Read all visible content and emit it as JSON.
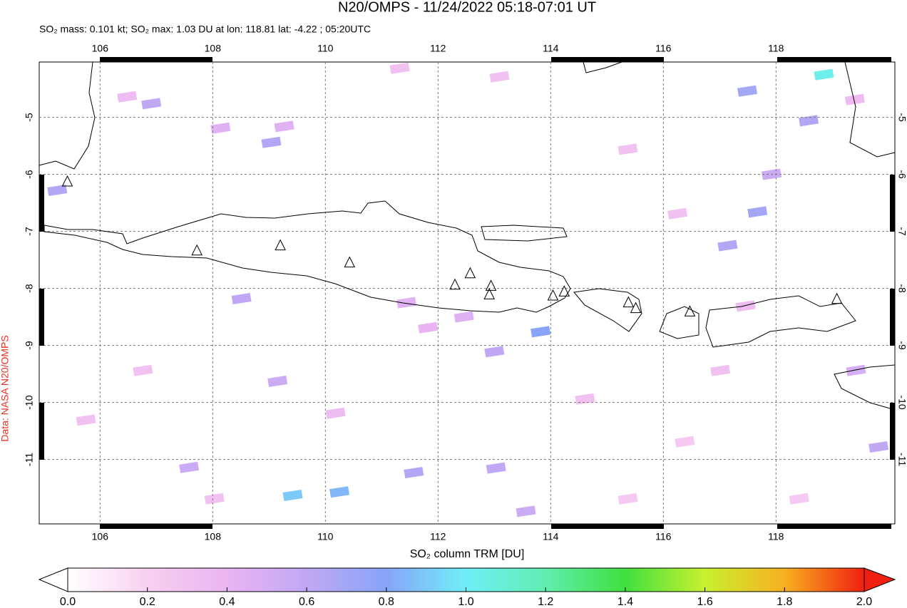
{
  "title": "N20/OMPS - 11/24/2022 05:18-07:01 UT",
  "subtitle": "SO₂ mass: 0.101 kt; SO₂ max: 1.03 DU at lon: 118.81 lat: -4.22 ; 05:20UTC",
  "credit": "Data: NASA N20/OMPS",
  "map": {
    "type": "map",
    "xlim": [
      104.92,
      120.11
    ],
    "ylim": [
      -12.13,
      -4.03
    ],
    "xticks": [
      106,
      108,
      110,
      112,
      114,
      116,
      118
    ],
    "yticks": [
      -5,
      -6,
      -7,
      -8,
      -9,
      -10,
      -11
    ],
    "grid": true,
    "volcanoes": [
      [
        105.42,
        -6.13
      ],
      [
        107.72,
        -7.34
      ],
      [
        109.2,
        -7.25
      ],
      [
        110.43,
        -7.55
      ],
      [
        112.3,
        -7.94
      ],
      [
        112.57,
        -7.74
      ],
      [
        112.94,
        -7.96
      ],
      [
        112.91,
        -8.11
      ],
      [
        114.04,
        -8.13
      ],
      [
        114.24,
        -8.06
      ],
      [
        115.38,
        -8.25
      ],
      [
        115.51,
        -8.35
      ],
      [
        116.47,
        -8.41
      ],
      [
        119.08,
        -8.19
      ]
    ],
    "cells": [
      [
        118.85,
        -4.25,
        1.03
      ],
      [
        109.42,
        -11.63,
        0.9
      ],
      [
        110.25,
        -11.57,
        0.85
      ],
      [
        113.82,
        -8.76,
        0.8
      ],
      [
        109.04,
        -5.44,
        0.65
      ],
      [
        106.91,
        -4.76,
        0.6
      ],
      [
        105.24,
        -6.28,
        0.65
      ],
      [
        108.51,
        -8.18,
        0.6
      ],
      [
        113.0,
        -9.11,
        0.6
      ],
      [
        111.57,
        -11.23,
        0.65
      ],
      [
        113.03,
        -11.15,
        0.6
      ],
      [
        113.56,
        -11.91,
        0.55
      ],
      [
        107.58,
        -11.14,
        0.55
      ],
      [
        109.15,
        -9.63,
        0.55
      ],
      [
        117.14,
        -7.25,
        0.65
      ],
      [
        117.67,
        -6.66,
        0.7
      ],
      [
        118.58,
        -5.06,
        0.65
      ],
      [
        117.49,
        -4.54,
        0.7
      ],
      [
        119.82,
        -10.78,
        0.6
      ],
      [
        119.42,
        -9.44,
        0.5
      ],
      [
        117.92,
        -6.0,
        0.55
      ],
      [
        111.44,
        -8.25,
        0.45
      ],
      [
        112.46,
        -8.5,
        0.45
      ],
      [
        108.14,
        -5.19,
        0.45
      ],
      [
        109.27,
        -5.16,
        0.45
      ],
      [
        106.48,
        -4.64,
        0.35
      ],
      [
        119.4,
        -4.69,
        0.35
      ],
      [
        111.32,
        -4.14,
        0.3
      ],
      [
        113.09,
        -4.29,
        0.3
      ],
      [
        115.37,
        -5.56,
        0.3
      ],
      [
        116.25,
        -6.69,
        0.3
      ],
      [
        114.61,
        -9.94,
        0.3
      ],
      [
        117.01,
        -9.44,
        0.3
      ],
      [
        106.76,
        -9.44,
        0.3
      ],
      [
        105.75,
        -10.31,
        0.3
      ],
      [
        110.18,
        -10.19,
        0.35
      ],
      [
        111.82,
        -8.69,
        0.4
      ],
      [
        116.38,
        -10.69,
        0.25
      ],
      [
        118.41,
        -11.69,
        0.25
      ],
      [
        115.37,
        -11.69,
        0.25
      ],
      [
        108.03,
        -11.69,
        0.3
      ],
      [
        117.46,
        -8.31,
        0.35
      ]
    ]
  },
  "colorbar": {
    "label": "SO₂ column TRM [DU]",
    "range": [
      0,
      2
    ],
    "ticks": [
      {
        "value": 0,
        "label": "0.0"
      },
      {
        "value": 0.2,
        "label": "0.2"
      },
      {
        "value": 0.4,
        "label": "0.4"
      },
      {
        "value": 0.6,
        "label": "0.6"
      },
      {
        "value": 0.8,
        "label": "0.8"
      },
      {
        "value": 1,
        "label": "1.0"
      },
      {
        "value": 1.2,
        "label": "1.2"
      },
      {
        "value": 1.4,
        "label": "1.4"
      },
      {
        "value": 1.6,
        "label": "1.6"
      },
      {
        "value": 1.8,
        "label": "1.8"
      },
      {
        "value": 2,
        "label": "2.0"
      }
    ],
    "colors": [
      "#ffffff",
      "#f8d0f0",
      "#eab4f2",
      "#c0a8f4",
      "#88a4f8",
      "#70eef8",
      "#60eeb0",
      "#40e040",
      "#c8f030",
      "#f8b020",
      "#f02010"
    ]
  }
}
